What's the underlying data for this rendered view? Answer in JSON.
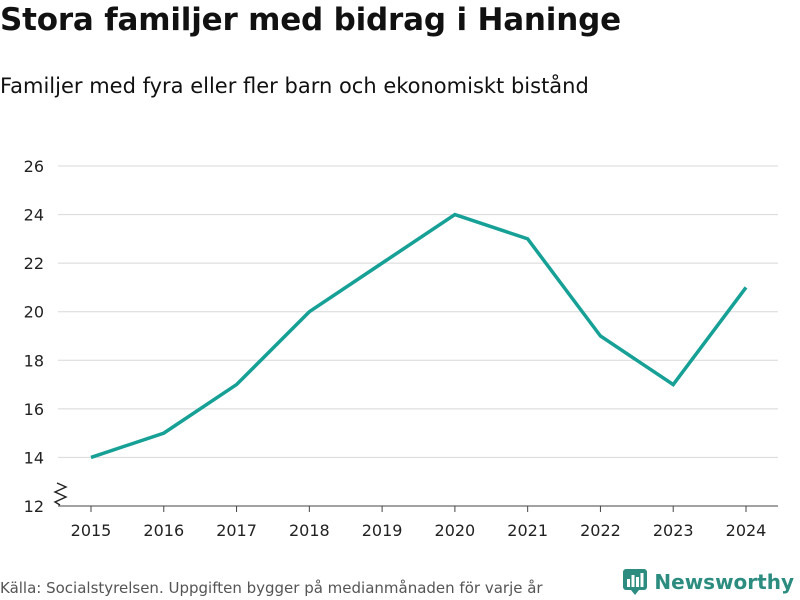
{
  "header": {
    "title": "Stora familjer med bidrag i Haninge",
    "subtitle": "Familjer med fyra eller fler barn och ekonomiskt bistånd"
  },
  "footer": {
    "source": "Källa: Socialstyrelsen. Uppgiften bygger på medianmånaden för varje år",
    "brand": "Newsworthy",
    "brand_icon": "bar-chart-logo-icon"
  },
  "colors": {
    "line": "#16a096",
    "grid": "#d8d8d8",
    "axis": "#444444",
    "brand": "#2b8c7f"
  },
  "chart_data": {
    "type": "line",
    "title": "Stora familjer med bidrag i Haninge",
    "subtitle": "Familjer med fyra eller fler barn och ekonomiskt bistånd",
    "xlabel": "",
    "ylabel": "",
    "x": [
      "2015",
      "2016",
      "2017",
      "2018",
      "2019",
      "2020",
      "2021",
      "2022",
      "2023",
      "2024"
    ],
    "series": [
      {
        "name": "Familjer med fyra eller fler barn och ekonomiskt bistånd",
        "values": [
          14,
          15,
          17,
          20,
          22,
          24,
          23,
          19,
          17,
          21
        ]
      }
    ],
    "yticks": [
      12,
      14,
      16,
      18,
      20,
      22,
      24,
      26
    ],
    "ylim": [
      12,
      26
    ],
    "grid": true,
    "axis_break": true
  }
}
